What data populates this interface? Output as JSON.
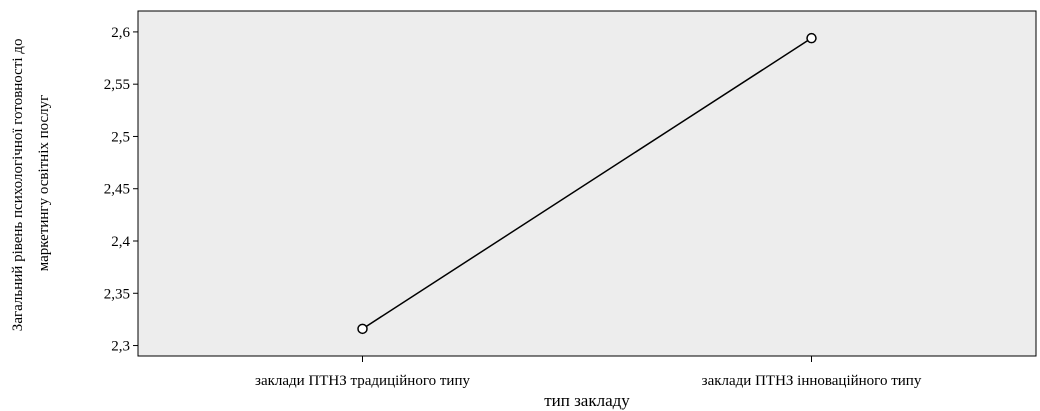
{
  "chart_data": {
    "type": "line",
    "categories": [
      "заклади ПТНЗ традиційного типу",
      "заклади ПТНЗ інноваційного типу"
    ],
    "series": [
      {
        "values": [
          2.316,
          2.594
        ]
      }
    ],
    "xlabel": "тип закладу",
    "ylabel_lines": [
      "Загальний рівень психологічної готовності до",
      "маркетингу освітніх послуг"
    ],
    "ylim": [
      2.29,
      2.62
    ],
    "yticks": [
      2.3,
      2.35,
      2.4,
      2.45,
      2.5,
      2.55,
      2.6
    ],
    "ytick_labels": [
      "2,3",
      "2,35",
      "2,4",
      "2,45",
      "2,5",
      "2,55",
      "2,6"
    ],
    "grid": false,
    "colors": {
      "plot_background": "#ededed",
      "line": "#000000",
      "marker_fill": "#ffffff"
    }
  }
}
